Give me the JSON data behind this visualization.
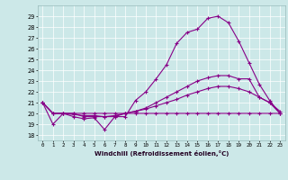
{
  "xlabel": "Windchill (Refroidissement éolien,°C)",
  "bg_color": "#cce8e8",
  "line_color": "#880088",
  "x_ticks": [
    0,
    1,
    2,
    3,
    4,
    5,
    6,
    7,
    8,
    9,
    10,
    11,
    12,
    13,
    14,
    15,
    16,
    17,
    18,
    19,
    20,
    21,
    22,
    23
  ],
  "y_ticks": [
    18,
    19,
    20,
    21,
    22,
    23,
    24,
    25,
    26,
    27,
    28,
    29
  ],
  "ylim": [
    17.5,
    30.0
  ],
  "xlim": [
    -0.5,
    23.5
  ],
  "series1": [
    21.0,
    19.0,
    20.0,
    19.7,
    19.5,
    19.6,
    18.5,
    19.7,
    19.7,
    21.2,
    22.0,
    23.2,
    24.5,
    26.5,
    27.5,
    27.8,
    28.8,
    29.0,
    28.4,
    26.7,
    24.7,
    22.7,
    21.2,
    20.0
  ],
  "series2": [
    21.0,
    20.0,
    20.0,
    20.0,
    19.7,
    19.7,
    19.7,
    19.7,
    20.0,
    20.2,
    20.5,
    21.0,
    21.5,
    22.0,
    22.5,
    23.0,
    23.3,
    23.5,
    23.5,
    23.2,
    23.2,
    21.5,
    21.0,
    20.0
  ],
  "series3": [
    21.0,
    20.0,
    20.0,
    19.9,
    19.8,
    19.8,
    19.7,
    19.8,
    20.0,
    20.2,
    20.4,
    20.7,
    21.0,
    21.3,
    21.7,
    22.0,
    22.3,
    22.5,
    22.5,
    22.3,
    22.0,
    21.5,
    21.0,
    20.2
  ],
  "series4": [
    21.0,
    20.0,
    20.0,
    20.0,
    20.0,
    20.0,
    20.0,
    20.0,
    20.0,
    20.0,
    20.0,
    20.0,
    20.0,
    20.0,
    20.0,
    20.0,
    20.0,
    20.0,
    20.0,
    20.0,
    20.0,
    20.0,
    20.0,
    20.0
  ]
}
